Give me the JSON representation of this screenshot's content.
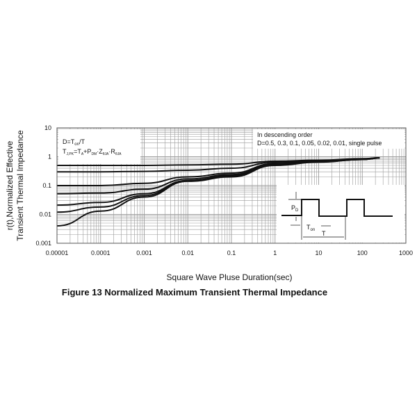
{
  "chart_data": {
    "type": "line",
    "title": "Figure 13 Normalized Maximum Transient Thermal Impedance",
    "xlabel": "Square Wave Pluse Duration(sec)",
    "ylabel": [
      "r(t),Normalized Effective",
      "Transient Thermal Impedance"
    ],
    "xscale": "log",
    "yscale": "log",
    "xlim": [
      1e-05,
      1000
    ],
    "ylim": [
      0.001,
      10
    ],
    "xticks": [
      "0.00001",
      "0.0001",
      "0.001",
      "0.01",
      "0.1",
      "1",
      "10",
      "100",
      "1000"
    ],
    "yticks": [
      "0.001",
      "0.01",
      "0.1",
      "1",
      "10"
    ],
    "grid": true,
    "legend_note": {
      "line1": "In descending order",
      "line2": "D=0.5, 0.3, 0.1, 0.05, 0.02, 0.01, single pulse"
    },
    "formula": {
      "line1": "D=T",
      "line1_sub": "on",
      "line1_end": "/T",
      "line2": "T",
      "line2_sub": "J,PK",
      "line2_mid": "=T",
      "line2_sub2": "A",
      "line2_mid2": "+P",
      "line2_sub3": "DM",
      "line2_mid3": "·Z",
      "line2_sub4": "θJA",
      "line2_mid4": "·R",
      "line2_sub5": "θJA"
    },
    "inset": {
      "pd": "P",
      "pd_sub": "D",
      "ton": "T",
      "ton_sub": "on",
      "t": "T"
    },
    "x": [
      1e-05,
      0.0001,
      0.001,
      0.01,
      0.1,
      1,
      10,
      100,
      250
    ],
    "series": [
      {
        "label": "D=0.5",
        "values": [
          0.5,
          0.5,
          0.5,
          0.52,
          0.55,
          0.7,
          0.76,
          0.85,
          0.92
        ]
      },
      {
        "label": "D=0.3",
        "values": [
          0.3,
          0.3,
          0.31,
          0.34,
          0.4,
          0.64,
          0.72,
          0.84,
          0.92
        ]
      },
      {
        "label": "D=0.1",
        "values": [
          0.1,
          0.1,
          0.12,
          0.2,
          0.27,
          0.58,
          0.68,
          0.82,
          0.91
        ]
      },
      {
        "label": "D=0.05",
        "values": [
          0.052,
          0.055,
          0.075,
          0.17,
          0.24,
          0.55,
          0.67,
          0.81,
          0.9
        ]
      },
      {
        "label": "D=0.02",
        "values": [
          0.021,
          0.026,
          0.052,
          0.15,
          0.22,
          0.53,
          0.66,
          0.8,
          0.9
        ]
      },
      {
        "label": "D=0.01",
        "values": [
          0.012,
          0.018,
          0.045,
          0.15,
          0.21,
          0.52,
          0.66,
          0.8,
          0.9
        ]
      },
      {
        "label": "single pulse",
        "values": [
          0.004,
          0.013,
          0.04,
          0.14,
          0.2,
          0.5,
          0.65,
          0.8,
          0.9
        ]
      }
    ],
    "colors": {
      "line": "#111111",
      "grid": "#9a9a9a"
    }
  }
}
